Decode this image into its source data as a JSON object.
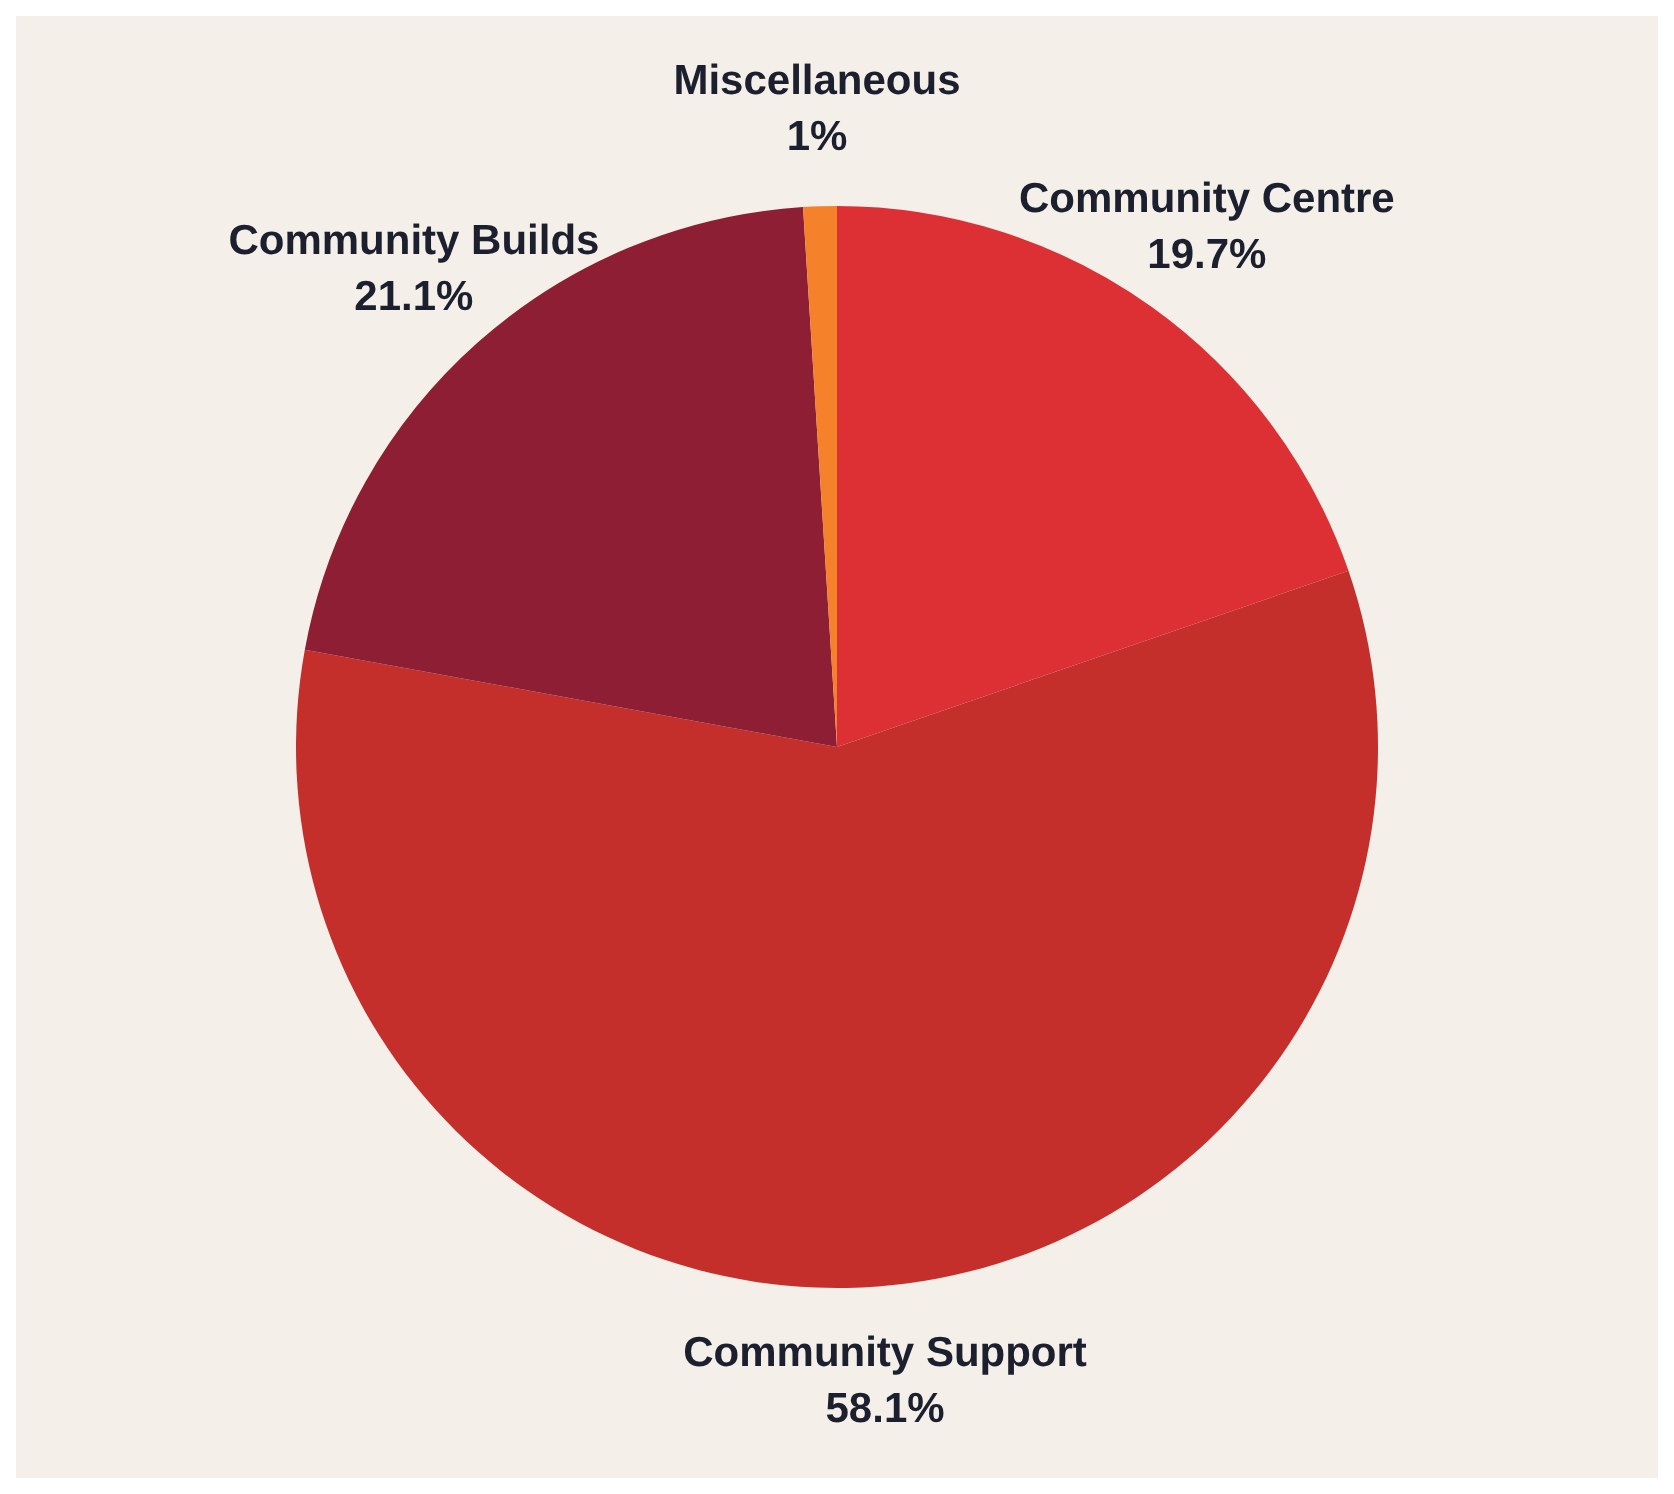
{
  "chart_data": {
    "type": "pie",
    "categories": [
      "Community Centre",
      "Community Support",
      "Community Builds",
      "Miscellaneous"
    ],
    "values": [
      19.7,
      58.1,
      21.1,
      1
    ],
    "value_labels": [
      "19.7%",
      "58.1%",
      "21.1%",
      "1%"
    ],
    "colors": [
      "#dc3035",
      "#c42f2c",
      "#8e1e33",
      "#f5822a"
    ],
    "legend": false
  }
}
